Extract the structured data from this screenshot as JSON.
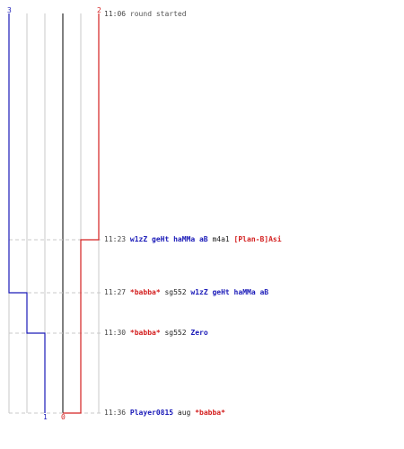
{
  "colors": {
    "blue_team": "#1a1ab8",
    "red_team": "#d42020",
    "grid": "#c8c8c8",
    "center_line": "#808080",
    "dashed_guide": "#c8c8c8",
    "time_text": "#444444"
  },
  "scores": {
    "blue_start": "3",
    "red_start": "2",
    "blue_end": "1",
    "red_end": "0"
  },
  "events": [
    {
      "time": "11:06",
      "message": "round started",
      "blue_after": 3,
      "red_after": 2
    },
    {
      "time": "11:23",
      "killer": "w1zZ geHt haMMa aB",
      "killer_team": "blue",
      "weapon": "m4a1",
      "victim": "[Plan-B]Asi",
      "victim_team": "red",
      "blue_after": 3,
      "red_after": 1
    },
    {
      "time": "11:27",
      "killer": "*babba*",
      "killer_team": "red",
      "weapon": "sg552",
      "victim": "w1zZ geHt haMMa aB",
      "victim_team": "blue",
      "blue_after": 2,
      "red_after": 1
    },
    {
      "time": "11:30",
      "killer": "*babba*",
      "killer_team": "red",
      "weapon": "sg552",
      "victim": "Zero",
      "victim_team": "blue",
      "blue_after": 1,
      "red_after": 1
    },
    {
      "time": "11:36",
      "killer": "Player0815",
      "killer_team": "blue",
      "weapon": "aug",
      "victim": "*babba*",
      "victim_team": "red",
      "blue_after": 1,
      "red_after": 0
    }
  ]
}
